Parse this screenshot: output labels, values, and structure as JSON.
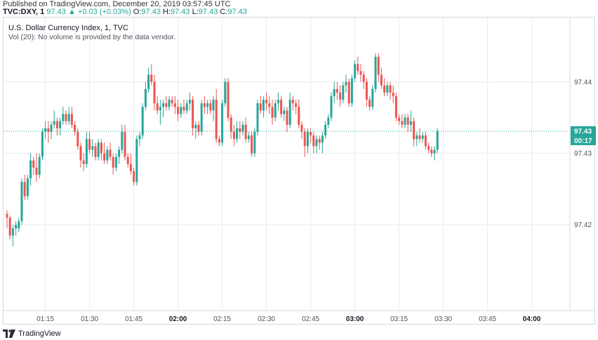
{
  "header": {
    "published": "Published on TradingView.com, December 20, 2019 03:57:45 UTC",
    "symbol": "TVC:DXY, 1",
    "last": "97.43",
    "change": "▲ +0.03 (+0.03%)",
    "o_label": "O:",
    "o_value": "97.43",
    "h_label": "H:",
    "h_value": "97.43",
    "l_label": "L:",
    "l_value": "97.43",
    "c_label": "C:",
    "c_value": "97.43"
  },
  "legend": {
    "title": "U.S. Dollar Currency Index, 1, TVC",
    "volume_note": "Vol (20): No volume is provided by the data vendor."
  },
  "footer": {
    "brand": "TradingView",
    "logo_icon": "tradingview-logo-icon"
  },
  "colors": {
    "up": "#26a69a",
    "down": "#ef5350",
    "grid": "#e9ebf0",
    "price_line": "#26a69a"
  },
  "chart_data": {
    "type": "candlestick",
    "title": "U.S. Dollar Currency Index, 1, TVC",
    "ylim": [
      97.408,
      97.449
    ],
    "y_ticks": [
      97.42,
      97.43,
      97.44
    ],
    "y_tick_labels": [
      "97.42",
      "97.43",
      "97.44"
    ],
    "x_ticks": [
      "01:15",
      "01:30",
      "01:45",
      "02:00",
      "02:15",
      "02:30",
      "02:45",
      "03:00",
      "03:15",
      "03:30",
      "03:45",
      "04:00"
    ],
    "x_ticks_bold": [
      "02:00",
      "03:00",
      "04:00"
    ],
    "grid": true,
    "last_price": 97.4331,
    "last_price_label": "97.43",
    "countdown_label": "00:17",
    "candles": [
      {
        "o": 97.4215,
        "h": 97.422,
        "l": 97.4195,
        "c": 97.421
      },
      {
        "o": 97.421,
        "h": 97.4212,
        "l": 97.418,
        "c": 97.4185
      },
      {
        "o": 97.4185,
        "h": 97.42,
        "l": 97.417,
        "c": 97.4195
      },
      {
        "o": 97.4195,
        "h": 97.4205,
        "l": 97.4185,
        "c": 97.42
      },
      {
        "o": 97.4195,
        "h": 97.421,
        "l": 97.419,
        "c": 97.4205
      },
      {
        "o": 97.4205,
        "h": 97.4265,
        "l": 97.42,
        "c": 97.426
      },
      {
        "o": 97.426,
        "h": 97.427,
        "l": 97.4235,
        "c": 97.424
      },
      {
        "o": 97.424,
        "h": 97.427,
        "l": 97.4235,
        "c": 97.4265
      },
      {
        "o": 97.4265,
        "h": 97.43,
        "l": 97.4255,
        "c": 97.429
      },
      {
        "o": 97.429,
        "h": 97.4295,
        "l": 97.427,
        "c": 97.428
      },
      {
        "o": 97.428,
        "h": 97.43,
        "l": 97.426,
        "c": 97.427
      },
      {
        "o": 97.427,
        "h": 97.43,
        "l": 97.4265,
        "c": 97.4295
      },
      {
        "o": 97.4295,
        "h": 97.4335,
        "l": 97.429,
        "c": 97.433
      },
      {
        "o": 97.433,
        "h": 97.4345,
        "l": 97.432,
        "c": 97.4335
      },
      {
        "o": 97.4335,
        "h": 97.4345,
        "l": 97.4315,
        "c": 97.433
      },
      {
        "o": 97.433,
        "h": 97.4345,
        "l": 97.432,
        "c": 97.434
      },
      {
        "o": 97.434,
        "h": 97.436,
        "l": 97.4335,
        "c": 97.4345
      },
      {
        "o": 97.4345,
        "h": 97.435,
        "l": 97.4325,
        "c": 97.4335
      },
      {
        "o": 97.4335,
        "h": 97.435,
        "l": 97.4325,
        "c": 97.4345
      },
      {
        "o": 97.4345,
        "h": 97.4365,
        "l": 97.434,
        "c": 97.4355
      },
      {
        "o": 97.4355,
        "h": 97.436,
        "l": 97.434,
        "c": 97.4345
      },
      {
        "o": 97.4345,
        "h": 97.4365,
        "l": 97.434,
        "c": 97.4355
      },
      {
        "o": 97.4355,
        "h": 97.4365,
        "l": 97.4335,
        "c": 97.434
      },
      {
        "o": 97.434,
        "h": 97.4345,
        "l": 97.4325,
        "c": 97.433
      },
      {
        "o": 97.433,
        "h": 97.4335,
        "l": 97.4305,
        "c": 97.431
      },
      {
        "o": 97.431,
        "h": 97.4315,
        "l": 97.428,
        "c": 97.429
      },
      {
        "o": 97.429,
        "h": 97.43,
        "l": 97.4275,
        "c": 97.4285
      },
      {
        "o": 97.4285,
        "h": 97.433,
        "l": 97.428,
        "c": 97.432
      },
      {
        "o": 97.432,
        "h": 97.433,
        "l": 97.43,
        "c": 97.4305
      },
      {
        "o": 97.4305,
        "h": 97.432,
        "l": 97.4295,
        "c": 97.431
      },
      {
        "o": 97.431,
        "h": 97.4315,
        "l": 97.429,
        "c": 97.4295
      },
      {
        "o": 97.4295,
        "h": 97.432,
        "l": 97.429,
        "c": 97.4315
      },
      {
        "o": 97.4315,
        "h": 97.432,
        "l": 97.429,
        "c": 97.43
      },
      {
        "o": 97.43,
        "h": 97.4315,
        "l": 97.4285,
        "c": 97.429
      },
      {
        "o": 97.429,
        "h": 97.431,
        "l": 97.4285,
        "c": 97.4305
      },
      {
        "o": 97.4305,
        "h": 97.4315,
        "l": 97.429,
        "c": 97.4295
      },
      {
        "o": 97.4295,
        "h": 97.43,
        "l": 97.427,
        "c": 97.428
      },
      {
        "o": 97.428,
        "h": 97.43,
        "l": 97.4275,
        "c": 97.4295
      },
      {
        "o": 97.4295,
        "h": 97.431,
        "l": 97.4285,
        "c": 97.4305
      },
      {
        "o": 97.4305,
        "h": 97.434,
        "l": 97.43,
        "c": 97.433
      },
      {
        "o": 97.433,
        "h": 97.434,
        "l": 97.429,
        "c": 97.4295
      },
      {
        "o": 97.4295,
        "h": 97.43,
        "l": 97.428,
        "c": 97.4285
      },
      {
        "o": 97.4285,
        "h": 97.43,
        "l": 97.427,
        "c": 97.4275
      },
      {
        "o": 97.4275,
        "h": 97.428,
        "l": 97.4255,
        "c": 97.426
      },
      {
        "o": 97.426,
        "h": 97.4325,
        "l": 97.4255,
        "c": 97.432
      },
      {
        "o": 97.432,
        "h": 97.433,
        "l": 97.431,
        "c": 97.4325
      },
      {
        "o": 97.4325,
        "h": 97.437,
        "l": 97.432,
        "c": 97.4365
      },
      {
        "o": 97.4365,
        "h": 97.44,
        "l": 97.436,
        "c": 97.439
      },
      {
        "o": 97.439,
        "h": 97.442,
        "l": 97.4385,
        "c": 97.441
      },
      {
        "o": 97.441,
        "h": 97.4425,
        "l": 97.4395,
        "c": 97.44
      },
      {
        "o": 97.44,
        "h": 97.441,
        "l": 97.436,
        "c": 97.437
      },
      {
        "o": 97.437,
        "h": 97.438,
        "l": 97.4355,
        "c": 97.436
      },
      {
        "o": 97.436,
        "h": 97.4375,
        "l": 97.434,
        "c": 97.4365
      },
      {
        "o": 97.4365,
        "h": 97.4375,
        "l": 97.435,
        "c": 97.437
      },
      {
        "o": 97.437,
        "h": 97.438,
        "l": 97.436,
        "c": 97.4365
      },
      {
        "o": 97.4365,
        "h": 97.438,
        "l": 97.436,
        "c": 97.4375
      },
      {
        "o": 97.4375,
        "h": 97.438,
        "l": 97.4365,
        "c": 97.437
      },
      {
        "o": 97.437,
        "h": 97.438,
        "l": 97.4355,
        "c": 97.4365
      },
      {
        "o": 97.4365,
        "h": 97.4375,
        "l": 97.4345,
        "c": 97.4355
      },
      {
        "o": 97.4355,
        "h": 97.437,
        "l": 97.435,
        "c": 97.4365
      },
      {
        "o": 97.4365,
        "h": 97.4375,
        "l": 97.4355,
        "c": 97.436
      },
      {
        "o": 97.436,
        "h": 97.4375,
        "l": 97.4355,
        "c": 97.437
      },
      {
        "o": 97.437,
        "h": 97.4385,
        "l": 97.436,
        "c": 97.4375
      },
      {
        "o": 97.4375,
        "h": 97.438,
        "l": 97.4325,
        "c": 97.4335
      },
      {
        "o": 97.4335,
        "h": 97.4345,
        "l": 97.432,
        "c": 97.434
      },
      {
        "o": 97.434,
        "h": 97.4345,
        "l": 97.4325,
        "c": 97.433
      },
      {
        "o": 97.433,
        "h": 97.4375,
        "l": 97.4325,
        "c": 97.437
      },
      {
        "o": 97.437,
        "h": 97.438,
        "l": 97.4355,
        "c": 97.4365
      },
      {
        "o": 97.4365,
        "h": 97.4375,
        "l": 97.4355,
        "c": 97.437
      },
      {
        "o": 97.437,
        "h": 97.4375,
        "l": 97.4355,
        "c": 97.436
      },
      {
        "o": 97.436,
        "h": 97.438,
        "l": 97.4345,
        "c": 97.4375
      },
      {
        "o": 97.4375,
        "h": 97.439,
        "l": 97.4315,
        "c": 97.432
      },
      {
        "o": 97.432,
        "h": 97.4325,
        "l": 97.431,
        "c": 97.4315
      },
      {
        "o": 97.4315,
        "h": 97.4375,
        "l": 97.431,
        "c": 97.437
      },
      {
        "o": 97.437,
        "h": 97.4405,
        "l": 97.4365,
        "c": 97.44
      },
      {
        "o": 97.44,
        "h": 97.4405,
        "l": 97.4345,
        "c": 97.435
      },
      {
        "o": 97.435,
        "h": 97.4355,
        "l": 97.432,
        "c": 97.433
      },
      {
        "o": 97.433,
        "h": 97.434,
        "l": 97.431,
        "c": 97.432
      },
      {
        "o": 97.432,
        "h": 97.4345,
        "l": 97.4315,
        "c": 97.4335
      },
      {
        "o": 97.4335,
        "h": 97.4345,
        "l": 97.432,
        "c": 97.433
      },
      {
        "o": 97.433,
        "h": 97.4345,
        "l": 97.4325,
        "c": 97.434
      },
      {
        "o": 97.434,
        "h": 97.435,
        "l": 97.4315,
        "c": 97.432
      },
      {
        "o": 97.432,
        "h": 97.433,
        "l": 97.4315,
        "c": 97.4325
      },
      {
        "o": 97.4325,
        "h": 97.433,
        "l": 97.4295,
        "c": 97.43
      },
      {
        "o": 97.43,
        "h": 97.4335,
        "l": 97.4295,
        "c": 97.433
      },
      {
        "o": 97.433,
        "h": 97.4375,
        "l": 97.4325,
        "c": 97.437
      },
      {
        "o": 97.437,
        "h": 97.438,
        "l": 97.4355,
        "c": 97.436
      },
      {
        "o": 97.436,
        "h": 97.438,
        "l": 97.435,
        "c": 97.4375
      },
      {
        "o": 97.4375,
        "h": 97.4385,
        "l": 97.436,
        "c": 97.437
      },
      {
        "o": 97.437,
        "h": 97.438,
        "l": 97.4355,
        "c": 97.4365
      },
      {
        "o": 97.4365,
        "h": 97.4375,
        "l": 97.434,
        "c": 97.435
      },
      {
        "o": 97.435,
        "h": 97.4375,
        "l": 97.4345,
        "c": 97.437
      },
      {
        "o": 97.437,
        "h": 97.4385,
        "l": 97.436,
        "c": 97.4375
      },
      {
        "o": 97.4375,
        "h": 97.438,
        "l": 97.435,
        "c": 97.4355
      },
      {
        "o": 97.4355,
        "h": 97.4365,
        "l": 97.4345,
        "c": 97.436
      },
      {
        "o": 97.436,
        "h": 97.4365,
        "l": 97.433,
        "c": 97.434
      },
      {
        "o": 97.434,
        "h": 97.4385,
        "l": 97.4335,
        "c": 97.4375
      },
      {
        "o": 97.4375,
        "h": 97.438,
        "l": 97.436,
        "c": 97.437
      },
      {
        "o": 97.437,
        "h": 97.4375,
        "l": 97.4355,
        "c": 97.4365
      },
      {
        "o": 97.4365,
        "h": 97.4375,
        "l": 97.4335,
        "c": 97.434
      },
      {
        "o": 97.434,
        "h": 97.4345,
        "l": 97.432,
        "c": 97.433
      },
      {
        "o": 97.433,
        "h": 97.4335,
        "l": 97.4295,
        "c": 97.431
      },
      {
        "o": 97.431,
        "h": 97.4335,
        "l": 97.43,
        "c": 97.433
      },
      {
        "o": 97.433,
        "h": 97.4335,
        "l": 97.4315,
        "c": 97.4325
      },
      {
        "o": 97.4325,
        "h": 97.433,
        "l": 97.43,
        "c": 97.431
      },
      {
        "o": 97.431,
        "h": 97.4325,
        "l": 97.43,
        "c": 97.432
      },
      {
        "o": 97.432,
        "h": 97.4325,
        "l": 97.4305,
        "c": 97.4315
      },
      {
        "o": 97.4315,
        "h": 97.433,
        "l": 97.43,
        "c": 97.4325
      },
      {
        "o": 97.4325,
        "h": 97.4345,
        "l": 97.432,
        "c": 97.434
      },
      {
        "o": 97.434,
        "h": 97.4355,
        "l": 97.4335,
        "c": 97.435
      },
      {
        "o": 97.435,
        "h": 97.4385,
        "l": 97.4345,
        "c": 97.438
      },
      {
        "o": 97.438,
        "h": 97.44,
        "l": 97.437,
        "c": 97.439
      },
      {
        "o": 97.439,
        "h": 97.44,
        "l": 97.4375,
        "c": 97.4385
      },
      {
        "o": 97.4385,
        "h": 97.4395,
        "l": 97.4365,
        "c": 97.4375
      },
      {
        "o": 97.4375,
        "h": 97.44,
        "l": 97.437,
        "c": 97.4395
      },
      {
        "o": 97.4395,
        "h": 97.441,
        "l": 97.4385,
        "c": 97.44
      },
      {
        "o": 97.44,
        "h": 97.4405,
        "l": 97.4365,
        "c": 97.437
      },
      {
        "o": 97.437,
        "h": 97.441,
        "l": 97.4365,
        "c": 97.4405
      },
      {
        "o": 97.4405,
        "h": 97.443,
        "l": 97.44,
        "c": 97.4425
      },
      {
        "o": 97.4425,
        "h": 97.4435,
        "l": 97.441,
        "c": 97.4415
      },
      {
        "o": 97.4415,
        "h": 97.4425,
        "l": 97.44,
        "c": 97.441
      },
      {
        "o": 97.441,
        "h": 97.4415,
        "l": 97.439,
        "c": 97.44
      },
      {
        "o": 97.44,
        "h": 97.4405,
        "l": 97.4365,
        "c": 97.4375
      },
      {
        "o": 97.4375,
        "h": 97.438,
        "l": 97.436,
        "c": 97.4365
      },
      {
        "o": 97.4365,
        "h": 97.4395,
        "l": 97.436,
        "c": 97.439
      },
      {
        "o": 97.439,
        "h": 97.444,
        "l": 97.4385,
        "c": 97.4435
      },
      {
        "o": 97.4435,
        "h": 97.444,
        "l": 97.44,
        "c": 97.441
      },
      {
        "o": 97.441,
        "h": 97.442,
        "l": 97.439,
        "c": 97.4395
      },
      {
        "o": 97.4395,
        "h": 97.4405,
        "l": 97.438,
        "c": 97.4385
      },
      {
        "o": 97.4385,
        "h": 97.44,
        "l": 97.438,
        "c": 97.4395
      },
      {
        "o": 97.4395,
        "h": 97.44,
        "l": 97.4375,
        "c": 97.4385
      },
      {
        "o": 97.4385,
        "h": 97.4395,
        "l": 97.437,
        "c": 97.438
      },
      {
        "o": 97.438,
        "h": 97.4385,
        "l": 97.4345,
        "c": 97.435
      },
      {
        "o": 97.435,
        "h": 97.4355,
        "l": 97.434,
        "c": 97.4345
      },
      {
        "o": 97.4345,
        "h": 97.4355,
        "l": 97.4335,
        "c": 97.434
      },
      {
        "o": 97.434,
        "h": 97.4355,
        "l": 97.4335,
        "c": 97.435
      },
      {
        "o": 97.435,
        "h": 97.4355,
        "l": 97.433,
        "c": 97.434
      },
      {
        "o": 97.434,
        "h": 97.436,
        "l": 97.433,
        "c": 97.4345
      },
      {
        "o": 97.4345,
        "h": 97.435,
        "l": 97.431,
        "c": 97.432
      },
      {
        "o": 97.432,
        "h": 97.433,
        "l": 97.431,
        "c": 97.4325
      },
      {
        "o": 97.4325,
        "h": 97.4335,
        "l": 97.4315,
        "c": 97.432
      },
      {
        "o": 97.432,
        "h": 97.433,
        "l": 97.4315,
        "c": 97.4325
      },
      {
        "o": 97.4325,
        "h": 97.433,
        "l": 97.4305,
        "c": 97.431
      },
      {
        "o": 97.431,
        "h": 97.4315,
        "l": 97.43,
        "c": 97.4305
      },
      {
        "o": 97.4305,
        "h": 97.431,
        "l": 97.4295,
        "c": 97.43
      },
      {
        "o": 97.43,
        "h": 97.431,
        "l": 97.429,
        "c": 97.4305
      },
      {
        "o": 97.4305,
        "h": 97.4335,
        "l": 97.43,
        "c": 97.4331
      }
    ]
  }
}
